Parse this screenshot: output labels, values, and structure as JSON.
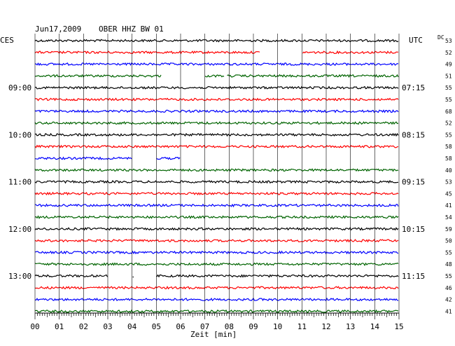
{
  "header": {
    "date": "Jun17,2009",
    "station": "OBER HHZ BW 01"
  },
  "left_label": "CES",
  "right_label": "UTC",
  "dc_label": "DC",
  "colors": {
    "black": "#000000",
    "red": "#ff0000",
    "blue": "#0000ff",
    "green": "#006400",
    "grid": "#000000"
  },
  "chart_data": {
    "type": "line",
    "title": "Jun17,2009  OBER HHZ BW 01",
    "xlabel": "Zeit [min]",
    "xlim": [
      0,
      15
    ],
    "x_ticks": [
      "00",
      "01",
      "02",
      "03",
      "04",
      "05",
      "06",
      "07",
      "08",
      "09",
      "10",
      "11",
      "12",
      "13",
      "14",
      "15"
    ],
    "left_hour_labels": [
      {
        "trace": 4,
        "label": "09:00"
      },
      {
        "trace": 8,
        "label": "10:00"
      },
      {
        "trace": 12,
        "label": "11:00"
      },
      {
        "trace": 16,
        "label": "12:00"
      },
      {
        "trace": 20,
        "label": "13:00"
      }
    ],
    "right_hour_labels": [
      {
        "trace": 4,
        "label": "07:15"
      },
      {
        "trace": 8,
        "label": "08:15"
      },
      {
        "trace": 12,
        "label": "09:15"
      },
      {
        "trace": 16,
        "label": "10:15"
      },
      {
        "trace": 20,
        "label": "11:15"
      }
    ],
    "traces": [
      {
        "color": "black",
        "dc": "53",
        "gaps": []
      },
      {
        "color": "red",
        "dc": "52",
        "gaps": [
          [
            9.3,
            11.0
          ]
        ]
      },
      {
        "color": "blue",
        "dc": "49",
        "gaps": []
      },
      {
        "color": "green",
        "dc": "51",
        "gaps": [
          [
            5.2,
            7.0
          ],
          [
            7.8,
            7.9
          ]
        ]
      },
      {
        "color": "black",
        "dc": "55",
        "gaps": []
      },
      {
        "color": "red",
        "dc": "55",
        "gaps": []
      },
      {
        "color": "blue",
        "dc": "68",
        "gaps": []
      },
      {
        "color": "green",
        "dc": "52",
        "gaps": []
      },
      {
        "color": "black",
        "dc": "55",
        "gaps": []
      },
      {
        "color": "red",
        "dc": "58",
        "gaps": []
      },
      {
        "color": "blue",
        "dc": "58",
        "gaps": [
          [
            4.0,
            5.0
          ],
          [
            6.0,
            15.0
          ]
        ]
      },
      {
        "color": "green",
        "dc": "40",
        "gaps": []
      },
      {
        "color": "black",
        "dc": "53",
        "gaps": []
      },
      {
        "color": "red",
        "dc": "45",
        "gaps": []
      },
      {
        "color": "blue",
        "dc": "41",
        "gaps": []
      },
      {
        "color": "green",
        "dc": "54",
        "gaps": []
      },
      {
        "color": "black",
        "dc": "59",
        "gaps": []
      },
      {
        "color": "red",
        "dc": "50",
        "gaps": []
      },
      {
        "color": "blue",
        "dc": "55",
        "gaps": []
      },
      {
        "color": "green",
        "dc": "48",
        "gaps": []
      },
      {
        "color": "black",
        "dc": "55",
        "gaps": [
          [
            3.0,
            4.0
          ],
          [
            4.1,
            5.0
          ]
        ]
      },
      {
        "color": "red",
        "dc": "46",
        "gaps": []
      },
      {
        "color": "blue",
        "dc": "42",
        "gaps": []
      },
      {
        "color": "green",
        "dc": "41",
        "gaps": []
      }
    ]
  }
}
